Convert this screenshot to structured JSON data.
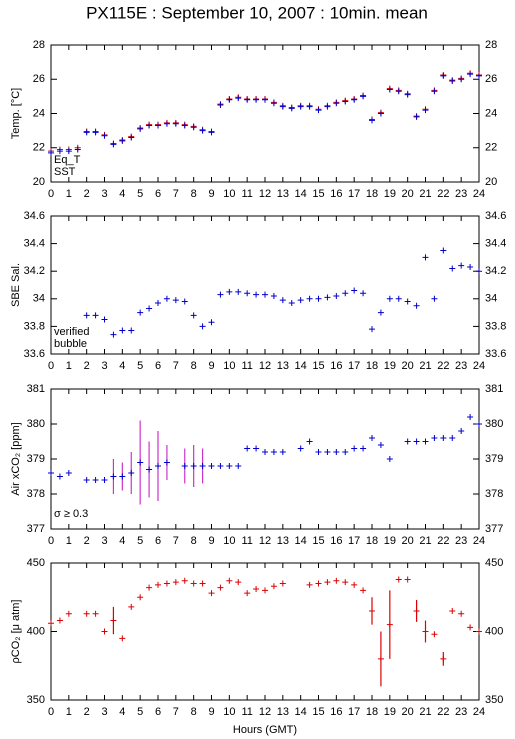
{
  "chart_data": [
    {
      "type": "scatter",
      "title": "PX115E : September 10, 2007 : 10min. mean",
      "ylabel": "Temp. [°C]",
      "x": [
        0,
        0.5,
        1,
        1.5,
        2,
        2.5,
        3,
        3.5,
        4,
        4.5,
        5,
        5.5,
        6,
        6.5,
        7,
        7.5,
        8,
        8.5,
        9,
        9.5,
        10,
        10.5,
        11,
        11.5,
        12,
        12.5,
        13,
        13.5,
        14,
        14.5,
        15,
        15.5,
        16,
        16.5,
        17,
        17.5,
        18,
        18.5,
        19,
        19.5,
        20,
        20.5,
        21,
        21.5,
        22,
        22.5,
        23,
        23.5,
        24
      ],
      "series": [
        {
          "name": "Eq_T",
          "color": "#dd0000",
          "values": [
            21.8,
            21.9,
            21.9,
            22.0,
            22.95,
            22.95,
            22.75,
            22.25,
            22.45,
            22.65,
            23.15,
            23.35,
            23.35,
            23.45,
            23.45,
            23.35,
            23.25,
            23.05,
            22.95,
            24.55,
            24.85,
            24.95,
            24.85,
            24.85,
            24.85,
            24.65,
            24.45,
            24.35,
            24.45,
            24.45,
            24.25,
            24.45,
            24.65,
            24.75,
            24.85,
            25.05,
            23.65,
            24.05,
            25.45,
            25.35,
            25.15,
            23.85,
            24.25,
            25.35,
            26.25,
            25.95,
            26.05,
            26.35,
            26.25
          ]
        },
        {
          "name": "SST",
          "color": "#0000cc",
          "values": [
            21.7,
            21.8,
            21.8,
            21.9,
            22.9,
            22.9,
            22.7,
            22.2,
            22.4,
            22.6,
            23.1,
            23.3,
            23.3,
            23.4,
            23.4,
            23.3,
            23.2,
            23.0,
            22.9,
            24.5,
            24.8,
            24.9,
            24.8,
            24.8,
            24.8,
            24.6,
            24.4,
            24.3,
            24.4,
            24.4,
            24.2,
            24.4,
            24.6,
            24.7,
            24.8,
            25.0,
            23.6,
            24.0,
            25.4,
            25.3,
            25.1,
            23.8,
            24.2,
            25.3,
            26.2,
            25.9,
            26.0,
            26.3,
            26.2
          ]
        }
      ],
      "xlim": [
        0,
        24
      ],
      "xticks": [
        0,
        1,
        2,
        3,
        4,
        5,
        6,
        7,
        8,
        9,
        10,
        11,
        12,
        13,
        14,
        15,
        16,
        17,
        18,
        19,
        20,
        21,
        22,
        23,
        24
      ],
      "ylim": [
        20,
        28
      ],
      "yticks": [
        20,
        22,
        24,
        26,
        28
      ]
    },
    {
      "type": "scatter",
      "ylabel": "SBE Sal.",
      "x": [
        0,
        0.5,
        1,
        1.5,
        2,
        2.5,
        3,
        3.5,
        4,
        4.5,
        5,
        5.5,
        6,
        6.5,
        7,
        7.5,
        8,
        8.5,
        9,
        9.5,
        10,
        10.5,
        11,
        11.5,
        12,
        12.5,
        13,
        13.5,
        14,
        14.5,
        15,
        15.5,
        16,
        16.5,
        17,
        17.5,
        18,
        18.5,
        19,
        19.5,
        20,
        20.5,
        21,
        21.5,
        22,
        22.5,
        23,
        23.5,
        24
      ],
      "series": [
        {
          "name": "verified",
          "color": "#0000cc",
          "values": [
            null,
            null,
            null,
            null,
            33.88,
            33.88,
            33.85,
            33.74,
            33.77,
            33.77,
            33.9,
            33.93,
            33.97,
            34.0,
            33.99,
            33.98,
            33.88,
            33.8,
            33.83,
            34.03,
            34.05,
            34.05,
            34.04,
            34.03,
            34.03,
            34.02,
            33.99,
            33.97,
            33.99,
            34.0,
            34.0,
            34.01,
            34.02,
            34.04,
            34.06,
            34.04,
            33.78,
            33.9,
            34.0,
            34.0,
            33.98,
            33.95,
            34.3,
            34.0,
            34.35,
            34.22,
            34.24,
            34.23,
            34.2
          ]
        },
        {
          "name": "bubble",
          "color": "#cc33cc",
          "values": [
            null,
            null,
            null,
            null,
            null,
            null,
            null,
            null,
            null,
            null,
            null,
            null,
            null,
            null,
            null,
            null,
            null,
            null,
            null,
            null,
            null,
            null,
            null,
            null,
            null,
            null,
            null,
            null,
            null,
            null,
            null,
            null,
            null,
            null,
            null,
            null,
            null,
            null,
            null,
            null,
            null,
            null,
            null,
            null,
            null,
            null,
            null,
            null,
            null
          ]
        }
      ],
      "xlim": [
        0,
        24
      ],
      "xticks": [
        0,
        1,
        2,
        3,
        4,
        5,
        6,
        7,
        8,
        9,
        10,
        11,
        12,
        13,
        14,
        15,
        16,
        17,
        18,
        19,
        20,
        21,
        22,
        23,
        24
      ],
      "ylim": [
        33.6,
        34.6
      ],
      "yticks": [
        33.6,
        33.8,
        34,
        34.2,
        34.4,
        34.6
      ]
    },
    {
      "type": "scatter",
      "ylabel": "Air xCO₂ [ppm]",
      "annotation": "σ ≥ 0.3",
      "annotation_color": "#cc33cc",
      "x": [
        0,
        0.5,
        1,
        1.5,
        2,
        2.5,
        3,
        3.5,
        4,
        4.5,
        5,
        5.5,
        6,
        6.5,
        7,
        7.5,
        8,
        8.5,
        9,
        9.5,
        10,
        10.5,
        11,
        11.5,
        12,
        12.5,
        13,
        13.5,
        14,
        14.5,
        15,
        15.5,
        16,
        16.5,
        17,
        17.5,
        18,
        18.5,
        19,
        19.5,
        20,
        20.5,
        21,
        21.5,
        22,
        22.5,
        23,
        23.5,
        24
      ],
      "series": [
        {
          "name": "xCO2",
          "color": "#0000cc",
          "error_color": "#cc33cc",
          "values": [
            378.6,
            378.5,
            378.6,
            null,
            378.4,
            378.4,
            378.4,
            378.5,
            378.5,
            378.6,
            378.9,
            378.7,
            378.8,
            378.9,
            null,
            378.8,
            378.8,
            378.8,
            378.8,
            378.8,
            378.8,
            378.8,
            379.3,
            379.3,
            379.2,
            379.2,
            379.2,
            null,
            379.3,
            379.5,
            379.2,
            379.2,
            379.2,
            379.2,
            379.3,
            379.3,
            379.6,
            379.4,
            379.0,
            null,
            379.5,
            379.5,
            379.5,
            379.6,
            379.6,
            379.6,
            379.8,
            380.2,
            380.0
          ],
          "errors": [
            null,
            null,
            null,
            null,
            null,
            null,
            null,
            0.5,
            0.4,
            0.6,
            1.2,
            0.8,
            1.0,
            0.5,
            null,
            0.5,
            0.6,
            0.5,
            null,
            null,
            null,
            null,
            null,
            null,
            null,
            null,
            null,
            null,
            null,
            null,
            null,
            null,
            null,
            null,
            null,
            null,
            null,
            null,
            null,
            null,
            null,
            null,
            null,
            null,
            null,
            null,
            null,
            null,
            null
          ]
        }
      ],
      "xlim": [
        0,
        24
      ],
      "xticks": [
        0,
        1,
        2,
        3,
        4,
        5,
        6,
        7,
        8,
        9,
        10,
        11,
        12,
        13,
        14,
        15,
        16,
        17,
        18,
        19,
        20,
        21,
        22,
        23,
        24
      ],
      "ylim": [
        377,
        381
      ],
      "yticks": [
        377,
        378,
        379,
        380,
        381
      ]
    },
    {
      "type": "scatter",
      "ylabel": "ρCO₂ [μ atm]",
      "xlabel": "Hours (GMT)",
      "x": [
        0,
        0.5,
        1,
        1.5,
        2,
        2.5,
        3,
        3.5,
        4,
        4.5,
        5,
        5.5,
        6,
        6.5,
        7,
        7.5,
        8,
        8.5,
        9,
        9.5,
        10,
        10.5,
        11,
        11.5,
        12,
        12.5,
        13,
        13.5,
        14,
        14.5,
        15,
        15.5,
        16,
        16.5,
        17,
        17.5,
        18,
        18.5,
        19,
        19.5,
        20,
        20.5,
        21,
        21.5,
        22,
        22.5,
        23,
        23.5,
        24
      ],
      "series": [
        {
          "name": "pCO2",
          "color": "#dd0000",
          "error_color": "#dd0000",
          "values": [
            406,
            408,
            413,
            null,
            413,
            413,
            400,
            408,
            395,
            418,
            425,
            432,
            434,
            435,
            436,
            437,
            435,
            435,
            428,
            432,
            437,
            436,
            428,
            431,
            430,
            433,
            435,
            null,
            null,
            434,
            435,
            436,
            437,
            436,
            434,
            430,
            415,
            380,
            405,
            438,
            438,
            415,
            400,
            398,
            380,
            415,
            413,
            403,
            400
          ],
          "errors": [
            null,
            null,
            null,
            null,
            null,
            null,
            null,
            10,
            null,
            null,
            null,
            null,
            null,
            null,
            null,
            null,
            null,
            null,
            null,
            null,
            null,
            null,
            null,
            null,
            null,
            null,
            null,
            null,
            null,
            null,
            null,
            null,
            null,
            null,
            null,
            null,
            10,
            20,
            25,
            null,
            null,
            8,
            8,
            null,
            5,
            null,
            null,
            null,
            null
          ]
        }
      ],
      "xlim": [
        0,
        24
      ],
      "xticks": [
        0,
        1,
        2,
        3,
        4,
        5,
        6,
        7,
        8,
        9,
        10,
        11,
        12,
        13,
        14,
        15,
        16,
        17,
        18,
        19,
        20,
        21,
        22,
        23,
        24
      ],
      "ylim": [
        350,
        450
      ],
      "yticks": [
        350,
        400,
        450
      ]
    }
  ]
}
